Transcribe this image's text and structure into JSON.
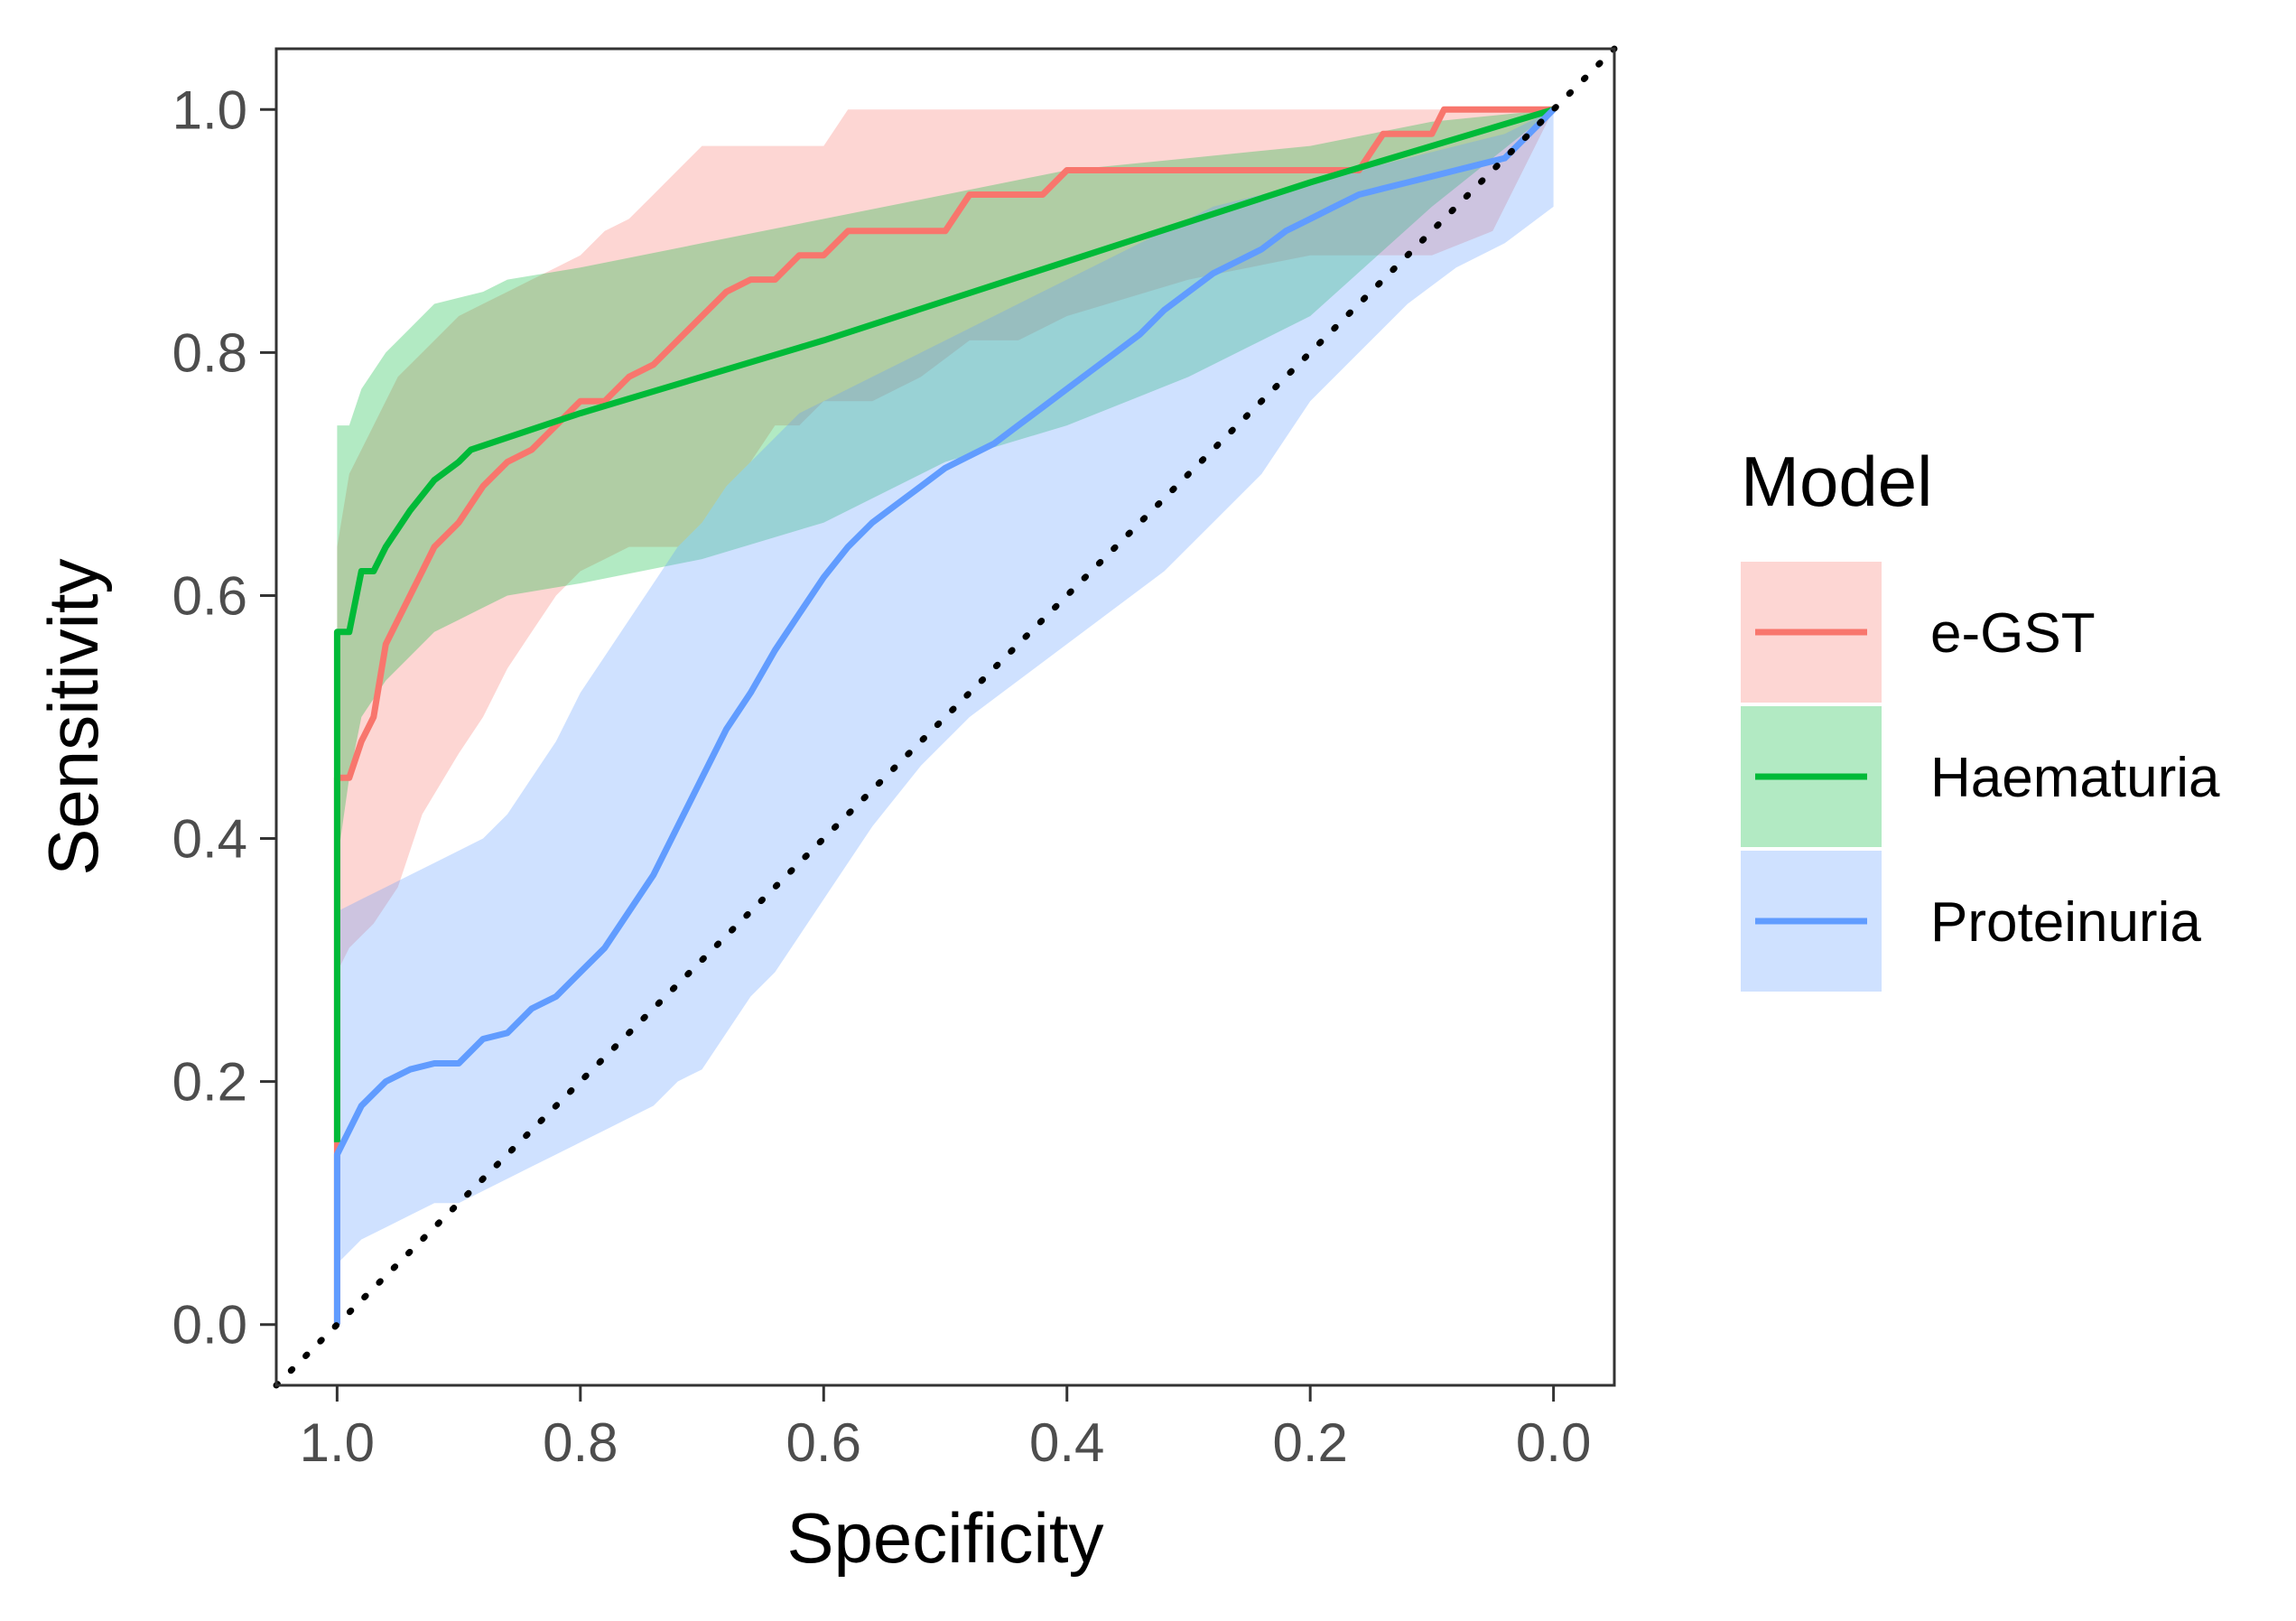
{
  "chart_data": {
    "type": "line",
    "title": "",
    "xlabel": "Specificity",
    "ylabel": "Sensitivity",
    "xlim": [
      1.05,
      -0.05
    ],
    "ylim": [
      -0.05,
      1.05
    ],
    "x_reversed": true,
    "xticks": [
      1.0,
      0.8,
      0.6,
      0.4,
      0.2,
      0.0
    ],
    "xtick_labels": [
      "1.0",
      "0.8",
      "0.6",
      "0.4",
      "0.2",
      "0.0"
    ],
    "yticks": [
      0.0,
      0.2,
      0.4,
      0.6,
      0.8,
      1.0
    ],
    "ytick_labels": [
      "0.0",
      "0.2",
      "0.4",
      "0.6",
      "0.8",
      "1.0"
    ],
    "grid": false,
    "legend": {
      "title": "Model",
      "position": "right"
    },
    "reference_line": {
      "style": "dotted",
      "color": "#000000",
      "from": [
        1.05,
        -0.05
      ],
      "to": [
        -0.05,
        1.05
      ]
    },
    "series": [
      {
        "name": "e-GST",
        "color": "#F8766D",
        "specificity": [
          1.0,
          1.0,
          0.99,
          0.98,
          0.97,
          0.96,
          0.95,
          0.94,
          0.93,
          0.92,
          0.9,
          0.88,
          0.86,
          0.84,
          0.82,
          0.8,
          0.78,
          0.76,
          0.74,
          0.72,
          0.7,
          0.68,
          0.66,
          0.64,
          0.62,
          0.6,
          0.58,
          0.56,
          0.54,
          0.52,
          0.5,
          0.48,
          0.46,
          0.44,
          0.42,
          0.4,
          0.3,
          0.2,
          0.16,
          0.14,
          0.12,
          0.1,
          0.09,
          0.0
        ],
        "sensitivity": [
          0.0,
          0.45,
          0.45,
          0.48,
          0.5,
          0.56,
          0.58,
          0.6,
          0.62,
          0.64,
          0.66,
          0.69,
          0.71,
          0.72,
          0.74,
          0.76,
          0.76,
          0.78,
          0.79,
          0.81,
          0.83,
          0.85,
          0.86,
          0.86,
          0.88,
          0.88,
          0.9,
          0.9,
          0.9,
          0.9,
          0.9,
          0.93,
          0.93,
          0.93,
          0.93,
          0.95,
          0.95,
          0.95,
          0.95,
          0.98,
          0.98,
          0.98,
          1.0,
          1.0
        ],
        "ci_spec": [
          1.0,
          0.99,
          0.97,
          0.95,
          0.93,
          0.9,
          0.88,
          0.86,
          0.84,
          0.82,
          0.8,
          0.78,
          0.76,
          0.74,
          0.72,
          0.7,
          0.68,
          0.66,
          0.64,
          0.62,
          0.6,
          0.58,
          0.56,
          0.52,
          0.48,
          0.44,
          0.4,
          0.3,
          0.2,
          0.1,
          0.05,
          0.0
        ],
        "ci_upper": [
          0.64,
          0.7,
          0.74,
          0.78,
          0.8,
          0.83,
          0.84,
          0.85,
          0.86,
          0.87,
          0.88,
          0.9,
          0.91,
          0.93,
          0.95,
          0.97,
          0.97,
          0.97,
          0.97,
          0.97,
          0.97,
          1.0,
          1.0,
          1.0,
          1.0,
          1.0,
          1.0,
          1.0,
          1.0,
          1.0,
          1.0,
          1.0
        ],
        "ci_lower": [
          0.29,
          0.31,
          0.33,
          0.36,
          0.42,
          0.47,
          0.5,
          0.54,
          0.57,
          0.6,
          0.62,
          0.63,
          0.64,
          0.64,
          0.64,
          0.66,
          0.69,
          0.71,
          0.74,
          0.74,
          0.76,
          0.76,
          0.76,
          0.78,
          0.81,
          0.81,
          0.83,
          0.86,
          0.88,
          0.88,
          0.9,
          1.0
        ]
      },
      {
        "name": "Haematuria",
        "color": "#00BA38",
        "specificity": [
          1.0,
          1.0,
          1.0,
          0.99,
          0.98,
          0.97,
          0.96,
          0.94,
          0.92,
          0.9,
          0.89,
          0.8,
          0.6,
          0.4,
          0.2,
          0.0
        ],
        "sensitivity": [
          0.15,
          0.57,
          0.57,
          0.57,
          0.62,
          0.62,
          0.64,
          0.67,
          0.695,
          0.71,
          0.72,
          0.75,
          0.81,
          0.875,
          0.94,
          1.0
        ],
        "ci_spec": [
          1.0,
          0.99,
          0.98,
          0.96,
          0.94,
          0.92,
          0.9,
          0.88,
          0.86,
          0.8,
          0.7,
          0.6,
          0.5,
          0.4,
          0.3,
          0.2,
          0.1,
          0.0
        ],
        "ci_upper": [
          0.74,
          0.74,
          0.77,
          0.8,
          0.82,
          0.84,
          0.845,
          0.85,
          0.86,
          0.87,
          0.89,
          0.91,
          0.93,
          0.95,
          0.96,
          0.97,
          0.99,
          1.0
        ],
        "ci_lower": [
          0.38,
          0.45,
          0.5,
          0.53,
          0.55,
          0.57,
          0.58,
          0.59,
          0.6,
          0.61,
          0.63,
          0.66,
          0.71,
          0.74,
          0.78,
          0.83,
          0.92,
          1.0
        ]
      },
      {
        "name": "Proteinuria",
        "color": "#619CFF",
        "specificity": [
          1.0,
          1.0,
          0.98,
          0.96,
          0.94,
          0.92,
          0.9,
          0.88,
          0.86,
          0.84,
          0.82,
          0.8,
          0.78,
          0.76,
          0.74,
          0.72,
          0.7,
          0.68,
          0.66,
          0.64,
          0.62,
          0.6,
          0.58,
          0.56,
          0.54,
          0.52,
          0.5,
          0.48,
          0.46,
          0.44,
          0.42,
          0.4,
          0.38,
          0.36,
          0.34,
          0.32,
          0.3,
          0.28,
          0.26,
          0.24,
          0.22,
          0.2,
          0.18,
          0.16,
          0.14,
          0.12,
          0.1,
          0.08,
          0.06,
          0.04,
          0.0
        ],
        "sensitivity": [
          0.0,
          0.14,
          0.18,
          0.2,
          0.21,
          0.215,
          0.215,
          0.235,
          0.24,
          0.26,
          0.27,
          0.29,
          0.31,
          0.34,
          0.37,
          0.41,
          0.45,
          0.49,
          0.52,
          0.555,
          0.585,
          0.615,
          0.64,
          0.66,
          0.675,
          0.69,
          0.705,
          0.715,
          0.725,
          0.74,
          0.755,
          0.77,
          0.785,
          0.8,
          0.815,
          0.835,
          0.85,
          0.865,
          0.875,
          0.885,
          0.9,
          0.91,
          0.92,
          0.93,
          0.935,
          0.94,
          0.945,
          0.95,
          0.955,
          0.96,
          1.0
        ],
        "ci_spec": [
          1.0,
          0.98,
          0.96,
          0.94,
          0.92,
          0.9,
          0.88,
          0.86,
          0.84,
          0.82,
          0.8,
          0.78,
          0.76,
          0.74,
          0.72,
          0.7,
          0.68,
          0.66,
          0.64,
          0.62,
          0.6,
          0.58,
          0.56,
          0.52,
          0.48,
          0.44,
          0.4,
          0.36,
          0.32,
          0.28,
          0.24,
          0.2,
          0.16,
          0.12,
          0.08,
          0.04,
          0.0
        ],
        "ci_upper": [
          0.34,
          0.35,
          0.36,
          0.37,
          0.38,
          0.39,
          0.4,
          0.42,
          0.45,
          0.48,
          0.52,
          0.55,
          0.58,
          0.61,
          0.64,
          0.66,
          0.69,
          0.71,
          0.73,
          0.75,
          0.76,
          0.77,
          0.78,
          0.8,
          0.82,
          0.84,
          0.86,
          0.88,
          0.9,
          0.92,
          0.93,
          0.94,
          0.95,
          0.96,
          0.97,
          0.98,
          1.0
        ],
        "ci_lower": [
          0.05,
          0.07,
          0.08,
          0.09,
          0.1,
          0.1,
          0.11,
          0.12,
          0.13,
          0.14,
          0.15,
          0.16,
          0.17,
          0.18,
          0.2,
          0.21,
          0.24,
          0.27,
          0.29,
          0.32,
          0.35,
          0.38,
          0.41,
          0.46,
          0.5,
          0.53,
          0.56,
          0.59,
          0.62,
          0.66,
          0.7,
          0.76,
          0.8,
          0.84,
          0.87,
          0.89,
          0.92
        ]
      }
    ]
  }
}
